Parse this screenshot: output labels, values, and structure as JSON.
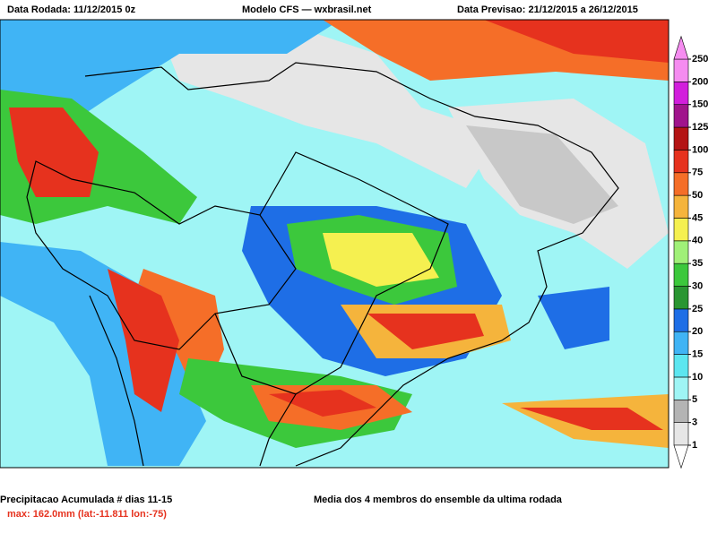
{
  "header": {
    "left": "Data Rodada: 11/12/2015 0z",
    "center": "Modelo CFS — wxbrasil.net",
    "right": "Data Previsao: 21/12/2015 a 26/12/2015"
  },
  "colorbar": {
    "levels": [
      1,
      3,
      5,
      10,
      15,
      20,
      25,
      30,
      35,
      40,
      45,
      50,
      75,
      100,
      125,
      150,
      200,
      250
    ],
    "colors": [
      "#e6e6e6",
      "#b4b4b4",
      "#9ff5f5",
      "#5ce6f0",
      "#40b4f5",
      "#1e6ee6",
      "#2a9632",
      "#3cc83c",
      "#a0f078",
      "#f5f050",
      "#f5b43c",
      "#f56e28",
      "#e6321e",
      "#b41414",
      "#a0148c",
      "#d21edc",
      "#f58cf0"
    ]
  },
  "footer": {
    "title": "Precipitacao Acumulada # dias 11-15",
    "max": "max: 162.0mm (lat:-11.811 lon:-75)",
    "note": "Media dos 4 membros do ensemble da ultima rodada"
  }
}
